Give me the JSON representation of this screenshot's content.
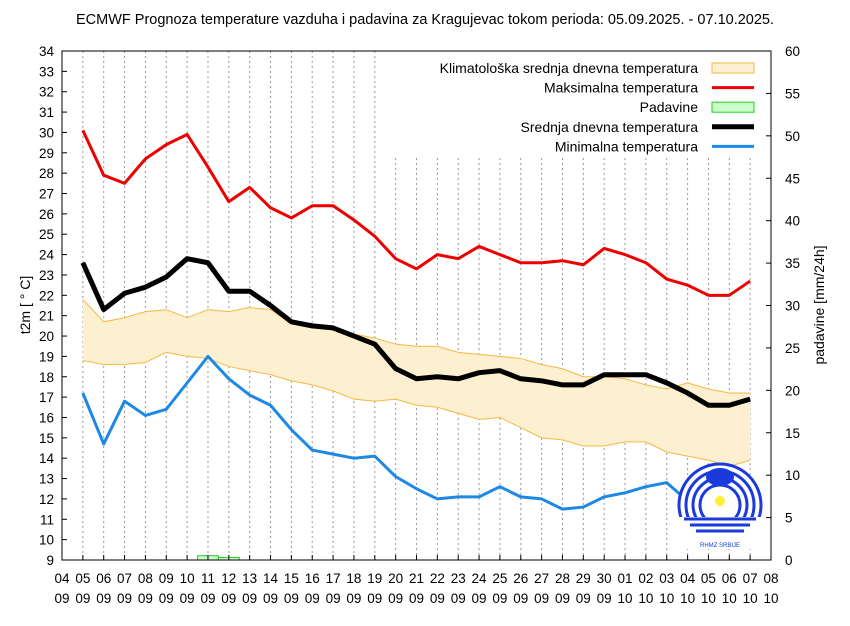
{
  "chart_data": {
    "type": "line",
    "title": "ECMWF Prognoza temperature vazduha i padavina za Kragujevac tokom perioda: 05.09.2025. - 07.10.2025.",
    "ylabel": "t2m [ ° C]",
    "y2label": "padavine [mm/24h]",
    "ylim": [
      9,
      34
    ],
    "y2lim": [
      0,
      60
    ],
    "grid": "vertical dotted",
    "legend": "top-right",
    "x_tick_labels": [
      [
        "04",
        "09"
      ],
      [
        "05",
        "09"
      ],
      [
        "06",
        "09"
      ],
      [
        "07",
        "09"
      ],
      [
        "08",
        "09"
      ],
      [
        "09",
        "09"
      ],
      [
        "10",
        "09"
      ],
      [
        "11",
        "09"
      ],
      [
        "12",
        "09"
      ],
      [
        "13",
        "09"
      ],
      [
        "14",
        "09"
      ],
      [
        "15",
        "09"
      ],
      [
        "16",
        "09"
      ],
      [
        "17",
        "09"
      ],
      [
        "18",
        "09"
      ],
      [
        "19",
        "09"
      ],
      [
        "20",
        "09"
      ],
      [
        "21",
        "09"
      ],
      [
        "22",
        "09"
      ],
      [
        "23",
        "09"
      ],
      [
        "24",
        "09"
      ],
      [
        "25",
        "09"
      ],
      [
        "26",
        "09"
      ],
      [
        "27",
        "09"
      ],
      [
        "28",
        "09"
      ],
      [
        "29",
        "09"
      ],
      [
        "30",
        "09"
      ],
      [
        "01",
        "10"
      ],
      [
        "02",
        "10"
      ],
      [
        "03",
        "10"
      ],
      [
        "04",
        "10"
      ],
      [
        "05",
        "10"
      ],
      [
        "06",
        "10"
      ],
      [
        "07",
        "10"
      ],
      [
        "08",
        "10"
      ]
    ],
    "dates": [
      "05.09",
      "06.09",
      "07.09",
      "08.09",
      "09.09",
      "10.09",
      "11.09",
      "12.09",
      "13.09",
      "14.09",
      "15.09",
      "16.09",
      "17.09",
      "18.09",
      "19.09",
      "20.09",
      "21.09",
      "22.09",
      "23.09",
      "24.09",
      "25.09",
      "26.09",
      "27.09",
      "28.09",
      "29.09",
      "30.09",
      "01.10",
      "02.10",
      "03.10",
      "04.10",
      "05.10",
      "06.10",
      "07.10"
    ],
    "climatology": {
      "name": "Klimatološka srednja dnevna temperatura",
      "color": "#f5b942",
      "fill": "#fdf0d0",
      "upper": [
        21.8,
        20.7,
        20.9,
        21.2,
        21.3,
        20.9,
        21.3,
        21.2,
        21.4,
        21.3,
        20.6,
        20.4,
        20.3,
        20.1,
        19.9,
        19.6,
        19.5,
        19.5,
        19.2,
        19.1,
        19.0,
        18.9,
        18.6,
        18.4,
        18.0,
        18.0,
        17.9,
        17.6,
        17.4,
        17.7,
        17.4,
        17.2,
        17.2
      ],
      "lower": [
        18.8,
        18.6,
        18.6,
        18.7,
        19.2,
        19.0,
        18.9,
        18.5,
        18.3,
        18.1,
        17.8,
        17.6,
        17.3,
        16.9,
        16.8,
        16.9,
        16.6,
        16.5,
        16.2,
        15.9,
        16.0,
        15.5,
        15.0,
        14.9,
        14.6,
        14.6,
        14.8,
        14.8,
        14.3,
        14.1,
        13.9,
        13.6,
        13.9
      ]
    },
    "series": [
      {
        "name": "Maksimalna temperatura",
        "color": "#ee0000",
        "width": 3,
        "values": [
          30.1,
          27.9,
          27.5,
          28.7,
          29.4,
          29.9,
          28.3,
          26.6,
          27.3,
          26.3,
          25.8,
          26.4,
          26.4,
          25.7,
          24.9,
          23.8,
          23.3,
          24.0,
          23.8,
          24.4,
          24.0,
          23.6,
          23.6,
          23.7,
          23.5,
          24.3,
          24.0,
          23.6,
          22.8,
          22.5,
          22.0,
          22.0,
          22.7
        ]
      },
      {
        "name": "Srednja dnevna temperatura",
        "color": "#000000",
        "width": 5,
        "values": [
          23.6,
          21.3,
          22.1,
          22.4,
          22.9,
          23.8,
          23.6,
          22.2,
          22.2,
          21.5,
          20.7,
          20.5,
          20.4,
          20.0,
          19.6,
          18.4,
          17.9,
          18.0,
          17.9,
          18.2,
          18.3,
          17.9,
          17.8,
          17.6,
          17.6,
          18.1,
          18.1,
          18.1,
          17.7,
          17.2,
          16.6,
          16.6,
          16.9
        ]
      },
      {
        "name": "Minimalna temperatura",
        "color": "#1e88e5",
        "width": 3,
        "values": [
          17.2,
          14.7,
          16.8,
          16.1,
          16.4,
          17.7,
          19.0,
          17.9,
          17.1,
          16.6,
          15.4,
          14.4,
          14.2,
          14.0,
          14.1,
          13.1,
          12.5,
          12.0,
          12.1,
          12.1,
          12.6,
          12.1,
          12.0,
          11.5,
          11.6,
          12.1,
          12.3,
          12.6,
          12.8,
          11.9,
          11.4,
          11.1,
          11.4
        ]
      }
    ],
    "precipitation": {
      "name": "Padavine",
      "color": "#22cc22",
      "fill": "#ccffcc",
      "values": [
        0,
        0,
        0,
        0,
        0,
        0,
        0.5,
        0.3,
        0,
        0,
        0,
        0,
        0,
        0,
        0,
        0,
        0,
        0,
        0,
        0,
        0,
        0,
        0,
        0,
        0,
        0,
        0,
        0,
        0,
        0,
        0,
        0,
        0
      ]
    },
    "legend_order": [
      "Klimatološka srednja dnevna temperatura",
      "Maksimalna temperatura",
      "Padavine",
      "Srednja dnevna temperatura",
      "Minimalna temperatura"
    ],
    "logo_text": "RHMZ SRBIJE"
  }
}
